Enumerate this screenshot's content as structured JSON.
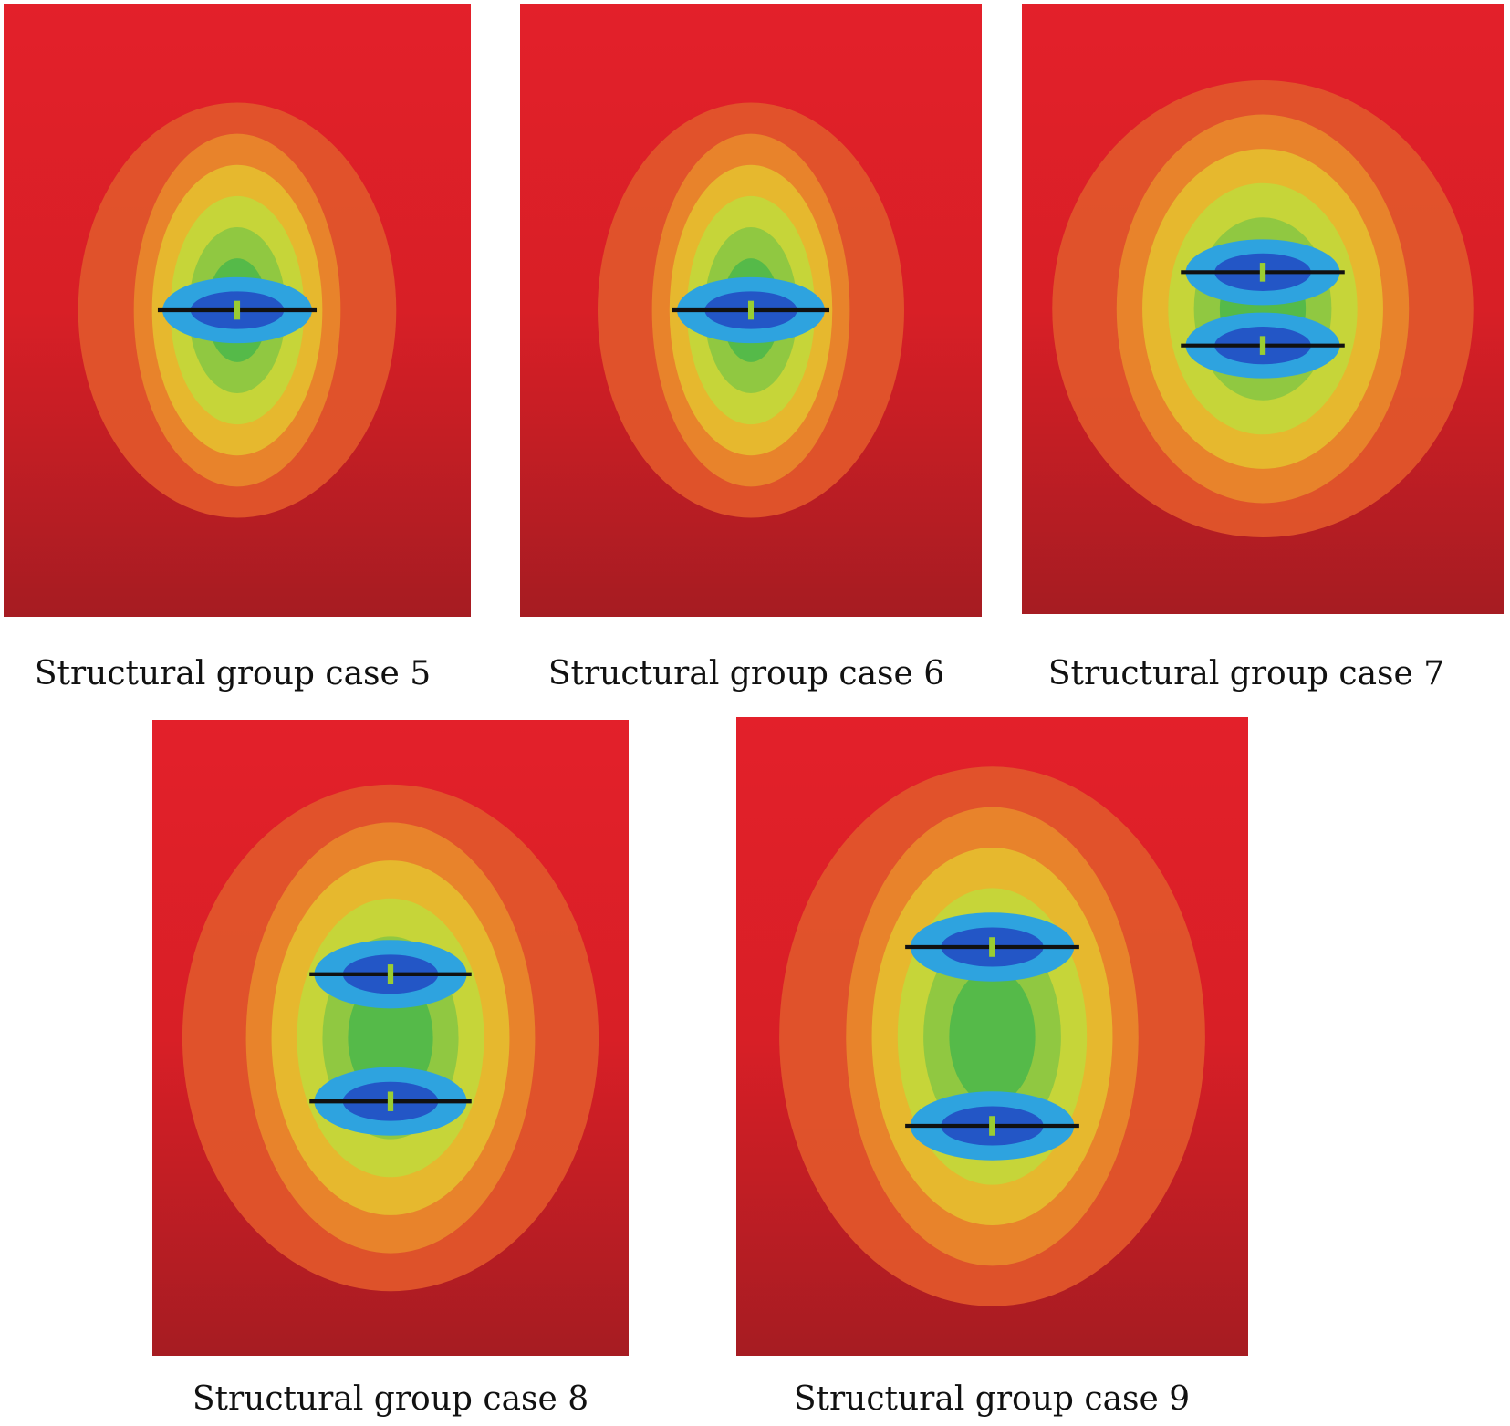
{
  "panels": [
    {
      "caption": "Structural group case 5"
    },
    {
      "caption": "Structural group case 6"
    },
    {
      "caption": "Structural group case 7"
    },
    {
      "caption": "Structural group case 8"
    },
    {
      "caption": "Structural group case 9"
    }
  ]
}
